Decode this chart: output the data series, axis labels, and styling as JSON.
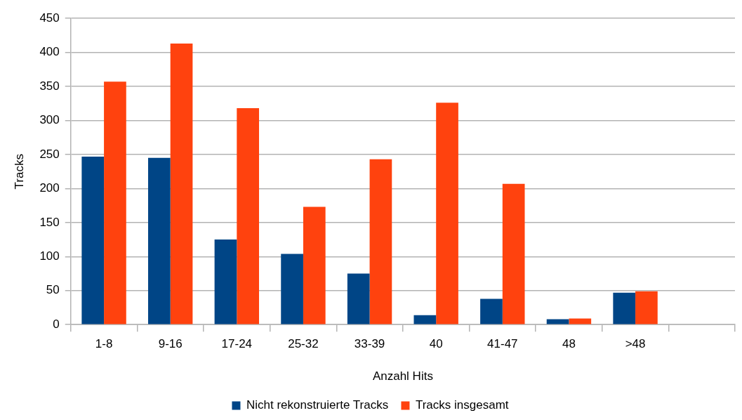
{
  "chart_data": {
    "type": "bar",
    "xlabel": "Anzahl Hits",
    "ylabel": "Tracks",
    "categories": [
      "1-8",
      "9-16",
      "17-24",
      "25-32",
      "33-39",
      "40",
      "41-47",
      "48",
      ">48",
      null
    ],
    "series": [
      {
        "name": "Nicht rekonstruierte Tracks",
        "color": "#004586",
        "values": [
          247,
          245,
          125,
          104,
          75,
          14,
          38,
          8,
          47,
          null
        ]
      },
      {
        "name": "Tracks insgesamt",
        "color": "#ff420e",
        "values": [
          357,
          413,
          318,
          173,
          243,
          326,
          207,
          9,
          49,
          null
        ]
      }
    ],
    "ylim": [
      0,
      450
    ],
    "yticks": [
      0,
      50,
      100,
      150,
      200,
      250,
      300,
      350,
      400,
      450
    ],
    "grid": "y",
    "legend": "bottom"
  }
}
